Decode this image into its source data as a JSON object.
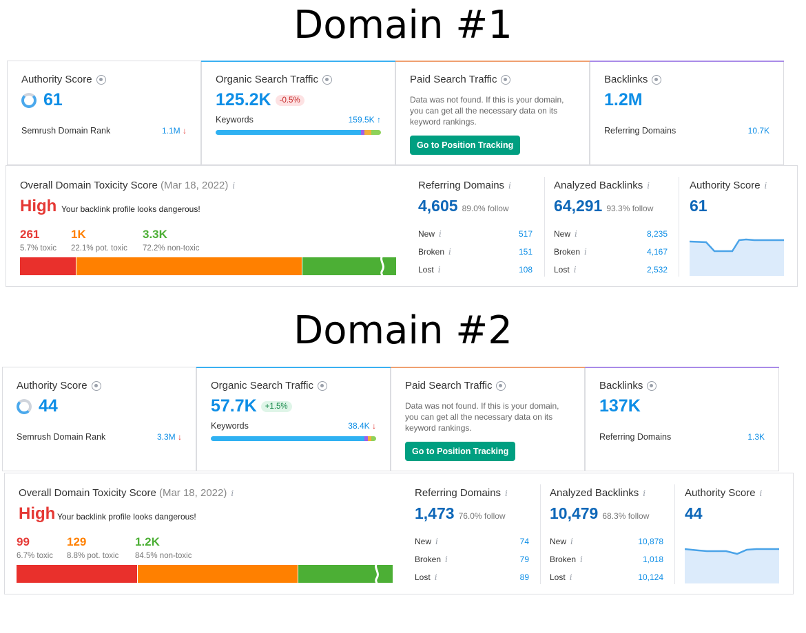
{
  "domains": [
    {
      "heading": "Domain #1",
      "authority": {
        "title": "Authority Score",
        "value": "61",
        "rank_label": "Semrush Domain Rank",
        "rank_value": "1.1M",
        "rank_arrow": "↓"
      },
      "organic": {
        "title": "Organic Search Traffic",
        "value": "125.2K",
        "change": "-0.5%",
        "change_dir": "negative",
        "keywords_label": "Keywords",
        "keywords_value": "159.5K",
        "keywords_arrow": "↑"
      },
      "paid": {
        "title": "Paid Search Traffic",
        "message": "Data was not found. If this is your domain, you can get all the necessary data on its keyword rankings.",
        "button": "Go to Position Tracking"
      },
      "backlinks": {
        "title": "Backlinks",
        "value": "1.2M",
        "ref_label": "Referring Domains",
        "ref_value": "10.7K"
      },
      "toxicity": {
        "title": "Overall Domain Toxicity Score",
        "date": "(Mar 18, 2022)",
        "level": "High",
        "note": "Your backlink profile looks dangerous!",
        "toxic_count": "261",
        "toxic_label": "5.7% toxic",
        "pot_count": "1K",
        "pot_label": "22.1% pot. toxic",
        "non_count": "3.3K",
        "non_label": "72.2% non-toxic"
      },
      "referring": {
        "title": "Referring Domains",
        "value": "4,605",
        "follow": "89.0% follow",
        "new_label": "New",
        "new": "517",
        "broken_label": "Broken",
        "broken": "151",
        "lost_label": "Lost",
        "lost": "108"
      },
      "analyzed": {
        "title": "Analyzed Backlinks",
        "value": "64,291",
        "follow": "93.3% follow",
        "new_label": "New",
        "new": "8,235",
        "broken_label": "Broken",
        "broken": "4,167",
        "lost_label": "Lost",
        "lost": "2,532"
      },
      "authority_trend": {
        "title": "Authority Score",
        "value": "61"
      }
    },
    {
      "heading": "Domain #2",
      "authority": {
        "title": "Authority Score",
        "value": "44",
        "rank_label": "Semrush Domain Rank",
        "rank_value": "3.3M",
        "rank_arrow": "↓"
      },
      "organic": {
        "title": "Organic Search Traffic",
        "value": "57.7K",
        "change": "+1.5%",
        "change_dir": "positive",
        "keywords_label": "Keywords",
        "keywords_value": "38.4K",
        "keywords_arrow": "↓"
      },
      "paid": {
        "title": "Paid Search Traffic",
        "message": "Data was not found. If this is your domain, you can get all the necessary data on its keyword rankings.",
        "button": "Go to Position Tracking"
      },
      "backlinks": {
        "title": "Backlinks",
        "value": "137K",
        "ref_label": "Referring Domains",
        "ref_value": "1.3K"
      },
      "toxicity": {
        "title": "Overall Domain Toxicity Score",
        "date": "(Mar 18, 2022)",
        "level": "High",
        "note": "Your backlink profile looks dangerous!",
        "toxic_count": "99",
        "toxic_label": "6.7% toxic",
        "pot_count": "129",
        "pot_label": "8.8% pot. toxic",
        "non_count": "1.2K",
        "non_label": "84.5% non-toxic"
      },
      "referring": {
        "title": "Referring Domains",
        "value": "1,473",
        "follow": "76.0% follow",
        "new_label": "New",
        "new": "74",
        "broken_label": "Broken",
        "broken": "79",
        "lost_label": "Lost",
        "lost": "89"
      },
      "analyzed": {
        "title": "Analyzed Backlinks",
        "value": "10,479",
        "follow": "68.3% follow",
        "new_label": "New",
        "new": "10,878",
        "broken_label": "Broken",
        "broken": "1,018",
        "lost_label": "Lost",
        "lost": "10,124"
      },
      "authority_trend": {
        "title": "Authority Score",
        "value": "44"
      }
    }
  ],
  "colors": {
    "blue": "#0e8ee6",
    "dark_blue": "#0e67b8",
    "red": "#e53935",
    "orange": "#ff8000",
    "green": "#4caf35",
    "teal": "#009f81"
  }
}
